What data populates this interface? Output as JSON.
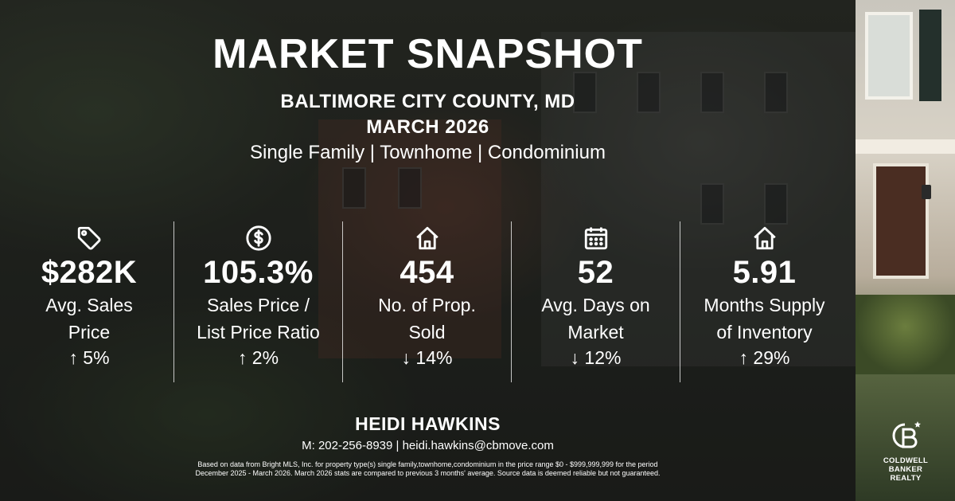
{
  "title": "MARKET SNAPSHOT",
  "location": "BALTIMORE CITY COUNTY, MD",
  "period": "MARCH 2026",
  "property_types": "Single Family | Townhome | Condominium",
  "stats": [
    {
      "icon": "price-tag-icon",
      "value": "$282K",
      "label_line1": "Avg. Sales",
      "label_line2": "Price",
      "change": "↑ 5%"
    },
    {
      "icon": "dollar-circle-icon",
      "value": "105.3%",
      "label_line1": "Sales Price /",
      "label_line2": "List Price Ratio",
      "change": "↑ 2%"
    },
    {
      "icon": "home-icon",
      "value": "454",
      "label_line1": "No. of Prop.",
      "label_line2": "Sold",
      "change": "↓ 14%"
    },
    {
      "icon": "calendar-icon",
      "value": "52",
      "label_line1": "Avg. Days on",
      "label_line2": "Market",
      "change": "↓ 12%"
    },
    {
      "icon": "home-icon",
      "value": "5.91",
      "label_line1": "Months Supply",
      "label_line2": "of Inventory",
      "change": "↑ 29%"
    }
  ],
  "agent": {
    "name": "HEIDI HAWKINS",
    "contact": "M: 202-256-8939 | heidi.hawkins@cbmove.com"
  },
  "disclaimer": "Based on data from Bright MLS, Inc. for property type(s) single family,townhome,condominium in the price range $0 - $999,999,999 for the period December 2025 - March 2026. March 2026 stats are compared to previous 3 months' average. Source data is deemed reliable but not guaranteed.",
  "brand": {
    "line1": "COLDWELL",
    "line2": "BANKER",
    "line3": "REALTY"
  }
}
